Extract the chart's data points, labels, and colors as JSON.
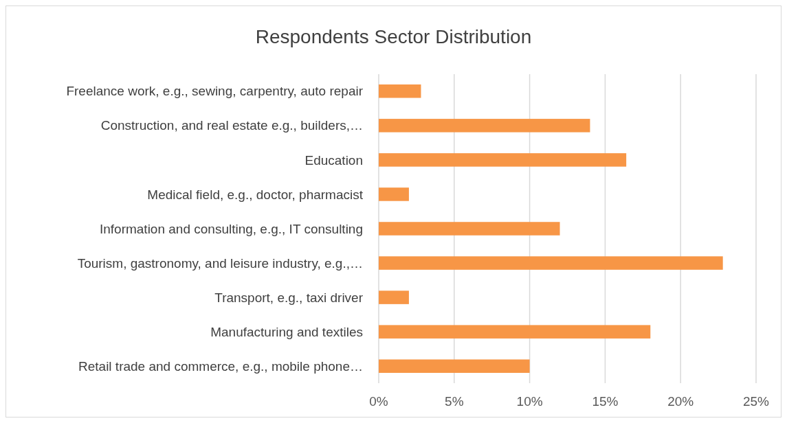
{
  "chart_data": {
    "type": "bar",
    "orientation": "horizontal",
    "title": "Respondents Sector Distribution",
    "categories": [
      "Freelance work, e.g., sewing, carpentry, auto repair",
      "Construction, and real estate e.g., builders,…",
      "Education",
      "Medical field, e.g., doctor, pharmacist",
      "Information and consulting, e.g., IT consulting",
      "Tourism, gastronomy, and leisure industry, e.g.,…",
      "Transport, e.g., taxi driver",
      "Manufacturing and textiles",
      "Retail trade and commerce, e.g., mobile phone…"
    ],
    "values": [
      2.8,
      14,
      16.4,
      2,
      12,
      22.8,
      2,
      18,
      10
    ],
    "color": "#f79646",
    "xlim": [
      0,
      25
    ],
    "xticks": [
      {
        "value": 0,
        "label": "0%"
      },
      {
        "value": 5,
        "label": "5%"
      },
      {
        "value": 10,
        "label": "10%"
      },
      {
        "value": 15,
        "label": "15%"
      },
      {
        "value": 20,
        "label": "20%"
      },
      {
        "value": 25,
        "label": "25%"
      }
    ],
    "grid": "x"
  }
}
